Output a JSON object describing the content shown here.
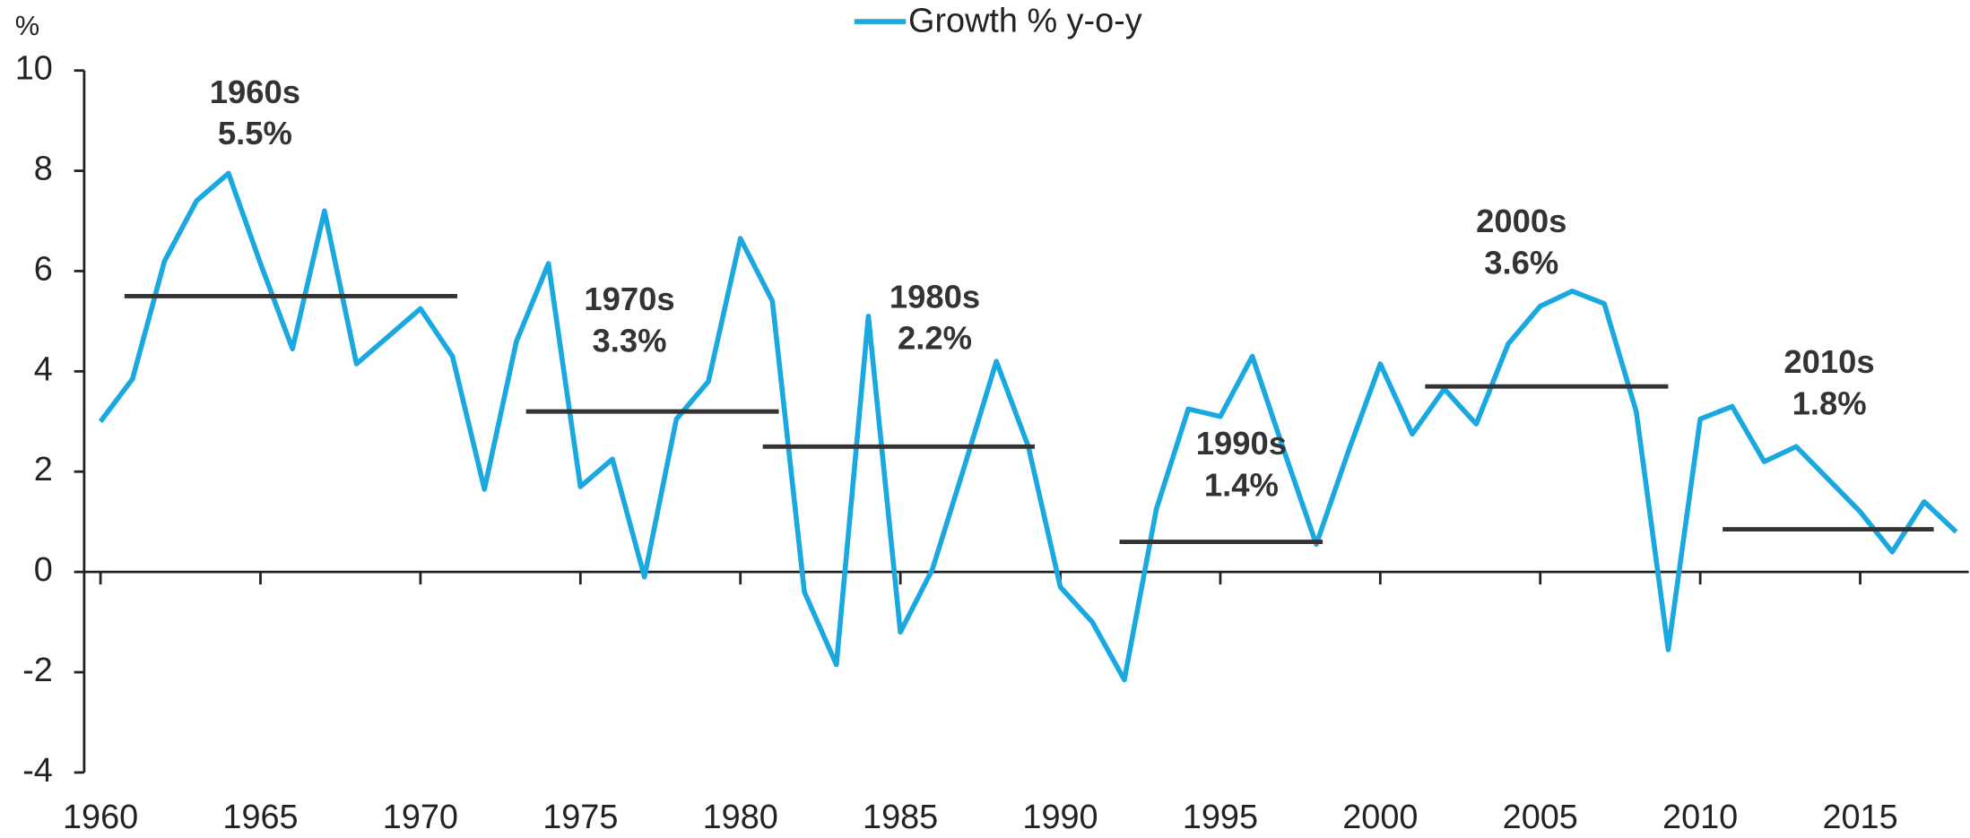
{
  "chart_data": {
    "type": "line",
    "y_label": "%",
    "x": [
      1960,
      1961,
      1962,
      1963,
      1964,
      1965,
      1966,
      1967,
      1968,
      1969,
      1970,
      1971,
      1972,
      1973,
      1974,
      1975,
      1976,
      1977,
      1978,
      1979,
      1980,
      1981,
      1982,
      1983,
      1984,
      1985,
      1986,
      1987,
      1988,
      1989,
      1990,
      1991,
      1992,
      1993,
      1994,
      1995,
      1996,
      1997,
      1998,
      1999,
      2000,
      2001,
      2002,
      2003,
      2004,
      2005,
      2006,
      2007,
      2008,
      2009,
      2010,
      2011,
      2012,
      2013,
      2014,
      2015,
      2016,
      2017,
      2018
    ],
    "series": [
      {
        "name": "Growth % y-o-y",
        "color": "#1aa8e0",
        "values": [
          3.0,
          3.85,
          6.2,
          7.4,
          7.95,
          6.15,
          4.45,
          7.2,
          4.15,
          4.7,
          5.25,
          4.3,
          1.65,
          4.6,
          6.15,
          1.7,
          2.25,
          -0.1,
          3.05,
          3.8,
          6.65,
          5.4,
          -0.4,
          -1.85,
          5.1,
          -1.2,
          0.05,
          2.1,
          4.2,
          2.5,
          -0.3,
          -1.0,
          -2.15,
          1.25,
          3.25,
          3.1,
          4.3,
          2.4,
          0.55,
          2.4,
          4.15,
          2.75,
          3.65,
          2.95,
          4.55,
          5.3,
          5.6,
          5.35,
          3.2,
          -1.55,
          3.05,
          3.3,
          2.2,
          2.5,
          1.85,
          1.2,
          0.4,
          1.4,
          0.8
        ]
      }
    ],
    "xlim": [
      1960,
      2018
    ],
    "xticks": [
      1960,
      1965,
      1970,
      1975,
      1980,
      1985,
      1990,
      1995,
      2000,
      2005,
      2010,
      2015
    ],
    "ylim": [
      -4,
      10
    ],
    "yticks": [
      -4,
      -2,
      0,
      2,
      4,
      6,
      8,
      10
    ],
    "legend": "top",
    "annotations": [
      {
        "label": "1960s",
        "value": 5.5,
        "value_label": "5.5%",
        "line_x": [
          1960.75,
          1971.15
        ],
        "line_y": 5.5
      },
      {
        "label": "1970s",
        "value": 3.3,
        "value_label": "3.3%",
        "line_x": [
          1973.3,
          1981.2
        ],
        "line_y": 3.2
      },
      {
        "label": "1980s",
        "value": 2.2,
        "value_label": "2.2%",
        "line_x": [
          1980.7,
          1989.2
        ],
        "line_y": 2.5
      },
      {
        "label": "1990s",
        "value": 1.4,
        "value_label": "1.4%",
        "line_x": [
          1991.85,
          1998.2
        ],
        "line_y": 0.6
      },
      {
        "label": "2000s",
        "value": 3.6,
        "value_label": "3.6%",
        "line_x": [
          2001.4,
          2009.0
        ],
        "line_y": 3.7
      },
      {
        "label": "2010s",
        "value": 1.8,
        "value_label": "1.8%",
        "line_x": [
          2010.7,
          2017.3
        ],
        "line_y": 0.85
      }
    ]
  }
}
